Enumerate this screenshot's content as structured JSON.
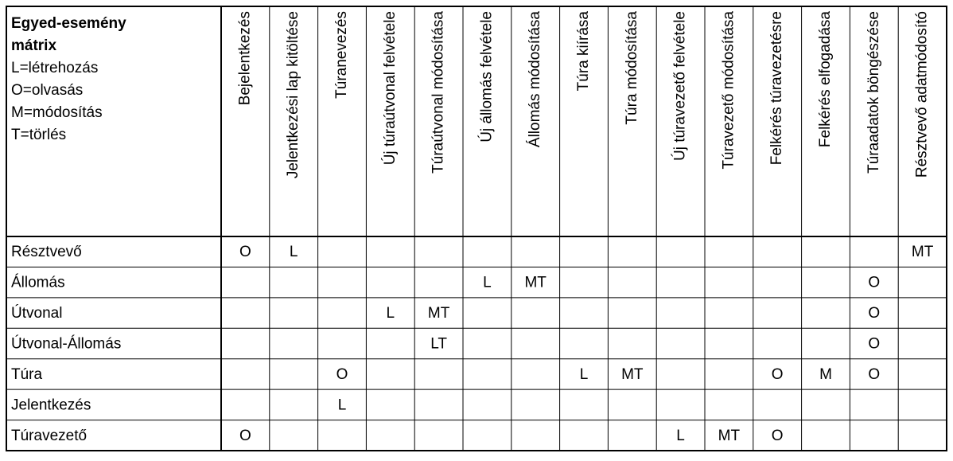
{
  "header": {
    "title": "Egyed-esemény mátrix",
    "legend": [
      "L=létrehozás",
      "O=olvasás",
      "M=módosítás",
      "T=törlés"
    ]
  },
  "table": {
    "columns": [
      "Bejelentkezés",
      "Jelentkezési lap kitöltése",
      "Túranevezés",
      "Új túraútvonal felvétele",
      "Túraútvonal módosítása",
      "Új állomás felvétele",
      "Állomás módosítása",
      "Túra kiírása",
      "Túra módosítása",
      "Új túravezető felvétele",
      "Túravezető módosítása",
      "Felkérés túravezetésre",
      "Felkérés elfogadása",
      "Túraadatok böngészése",
      "Résztvevő adatmódosító"
    ],
    "rows": [
      {
        "label": "Résztvevő",
        "cells": [
          "O",
          "L",
          null,
          null,
          null,
          null,
          null,
          null,
          null,
          null,
          null,
          null,
          null,
          null,
          "MT"
        ]
      },
      {
        "label": "Állomás",
        "cells": [
          null,
          null,
          null,
          null,
          null,
          "L",
          "MT",
          null,
          null,
          null,
          null,
          null,
          null,
          "O",
          null
        ]
      },
      {
        "label": "Útvonal",
        "cells": [
          null,
          null,
          null,
          "L",
          "MT",
          null,
          null,
          null,
          null,
          null,
          null,
          null,
          null,
          "O",
          null
        ]
      },
      {
        "label": "Útvonal-Állomás",
        "cells": [
          null,
          null,
          null,
          null,
          "LT",
          null,
          null,
          null,
          null,
          null,
          null,
          null,
          null,
          "O",
          null
        ]
      },
      {
        "label": "Túra",
        "cells": [
          null,
          null,
          "O",
          null,
          null,
          null,
          null,
          "L",
          "MT",
          null,
          null,
          "O",
          "M",
          "O",
          null
        ]
      },
      {
        "label": "Jelentkezés",
        "cells": [
          null,
          null,
          "L",
          null,
          null,
          null,
          null,
          null,
          null,
          null,
          null,
          null,
          null,
          null,
          null
        ]
      },
      {
        "label": "Túravezető",
        "cells": [
          "O",
          null,
          null,
          null,
          null,
          null,
          null,
          null,
          null,
          "L",
          "MT",
          "O",
          null,
          null,
          null
        ]
      }
    ]
  }
}
